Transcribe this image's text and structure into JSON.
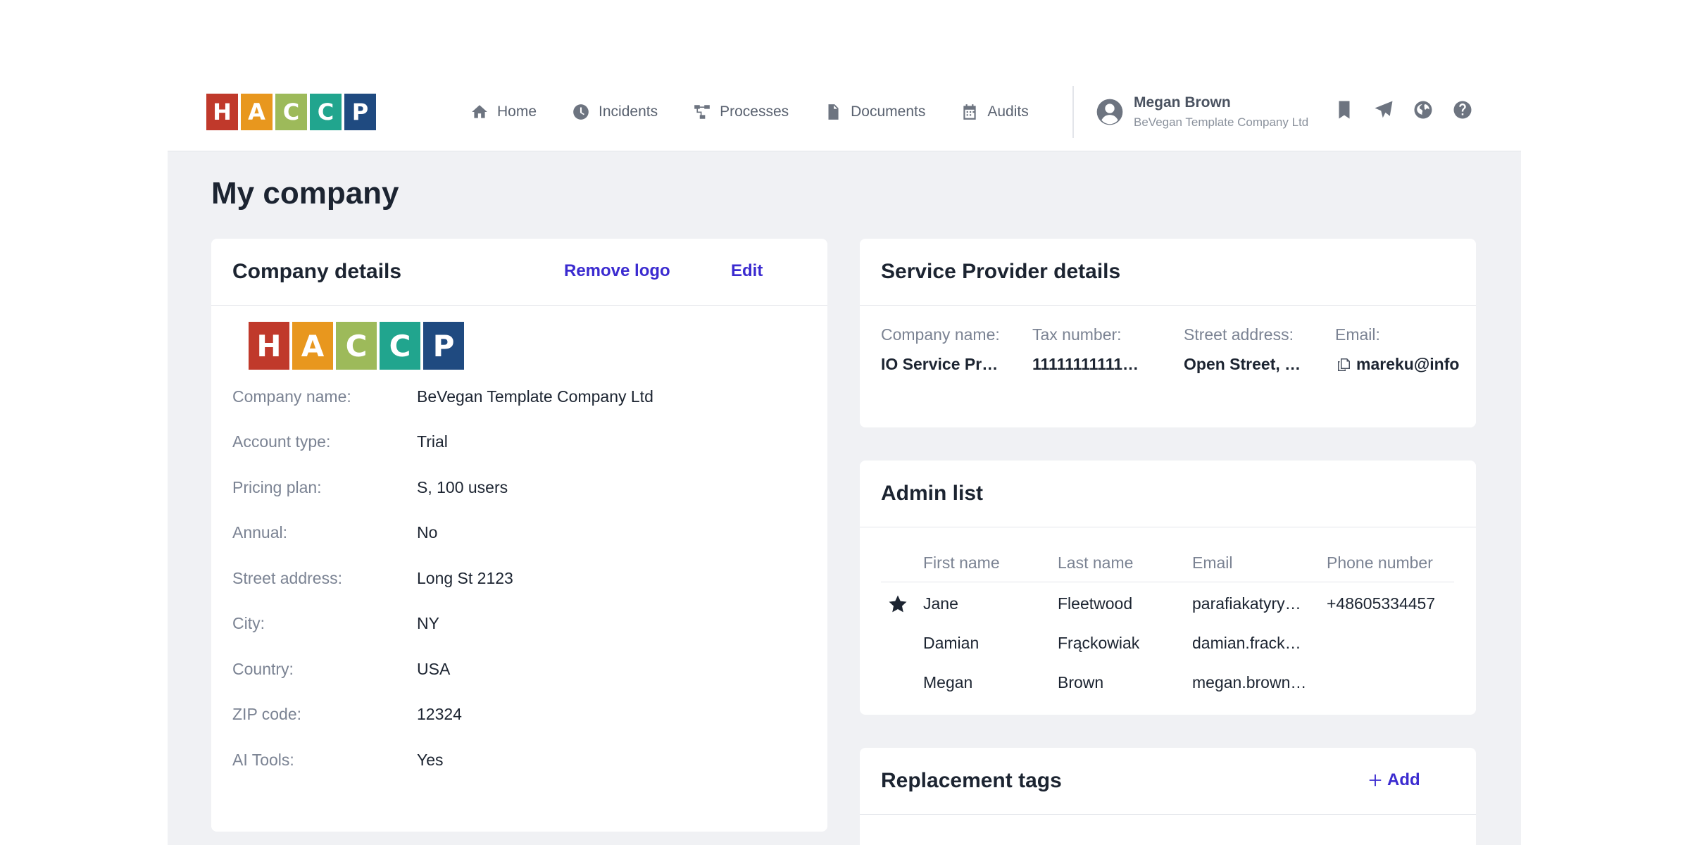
{
  "logo": {
    "letters": [
      "H",
      "A",
      "C",
      "C",
      "P"
    ],
    "colors": [
      "#c0392b",
      "#e8971e",
      "#9dba5a",
      "#21a58e",
      "#1f4a80"
    ]
  },
  "nav": {
    "items": [
      {
        "label": "Home",
        "icon": "home-icon"
      },
      {
        "label": "Incidents",
        "icon": "clock-icon"
      },
      {
        "label": "Processes",
        "icon": "processes-icon"
      },
      {
        "label": "Documents",
        "icon": "document-icon"
      },
      {
        "label": "Audits",
        "icon": "calendar-icon"
      }
    ]
  },
  "user": {
    "name": "Megan Brown",
    "company": "BeVegan Template Company Ltd"
  },
  "page": {
    "title": "My company"
  },
  "company_details": {
    "title": "Company details",
    "remove_logo": "Remove logo",
    "edit": "Edit",
    "fields": [
      {
        "label": "Company name:",
        "value": "BeVegan Template Company Ltd"
      },
      {
        "label": "Account type:",
        "value": "Trial"
      },
      {
        "label": "Pricing plan:",
        "value": "S, 100 users"
      },
      {
        "label": "Annual:",
        "value": "No"
      },
      {
        "label": "Street address:",
        "value": "Long St 2123"
      },
      {
        "label": "City:",
        "value": "NY"
      },
      {
        "label": "Country:",
        "value": "USA"
      },
      {
        "label": "ZIP code:",
        "value": "12324"
      },
      {
        "label": "AI Tools:",
        "value": "Yes"
      }
    ]
  },
  "service_provider": {
    "title": "Service Provider details",
    "company_name_label": "Company name:",
    "company_name_value": "IO Service Pr…",
    "tax_label": "Tax number:",
    "tax_value": "11111111111…",
    "street_label": "Street address:",
    "street_value": "Open Street, …",
    "email_label": "Email:",
    "email_value": "mareku@info"
  },
  "admin_list": {
    "title": "Admin list",
    "headers": [
      "First name",
      "Last name",
      "Email",
      "Phone number"
    ],
    "rows": [
      {
        "first": "Jane",
        "last": "Fleetwood",
        "email": "parafiakatyry…",
        "phone": "+48605334457",
        "starred": true
      },
      {
        "first": "Damian",
        "last": "Frąckowiak",
        "email": "damian.frack…",
        "phone": "",
        "starred": false
      },
      {
        "first": "Megan",
        "last": "Brown",
        "email": "megan.brown…",
        "phone": "",
        "starred": false
      }
    ]
  },
  "replacement_tags": {
    "title": "Replacement tags",
    "add": "Add"
  }
}
